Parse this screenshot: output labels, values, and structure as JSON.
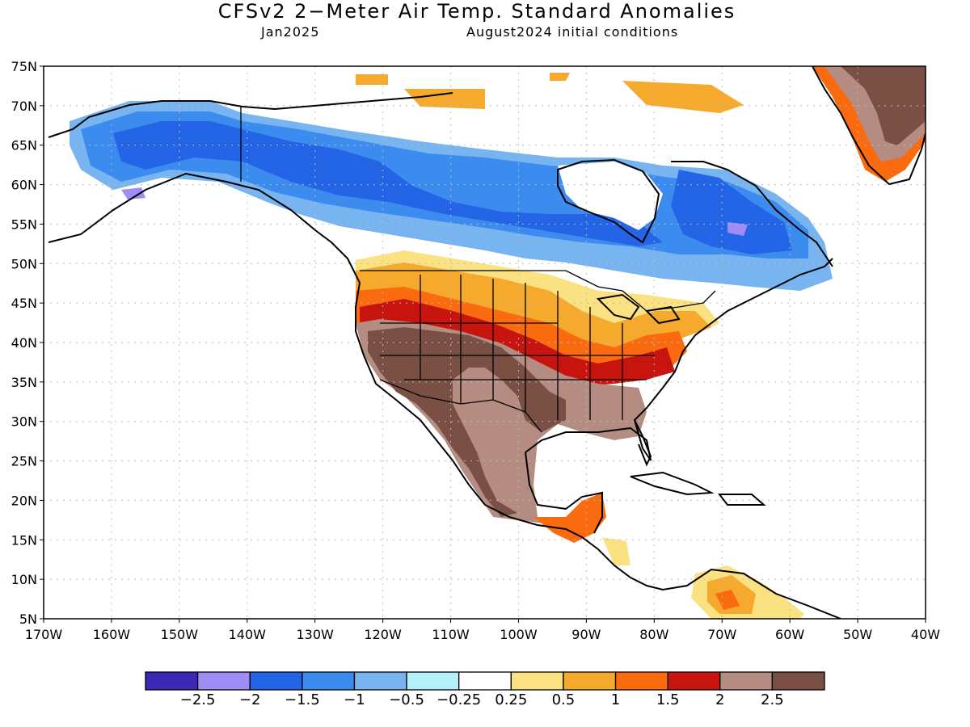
{
  "title": "CFSv2 2−Meter Air Temp. Standard Anomalies",
  "subtitle_left": "Jan2025",
  "subtitle_right": "August2024 initial conditions",
  "lat_labels": [
    "75N",
    "70N",
    "65N",
    "60N",
    "55N",
    "50N",
    "45N",
    "40N",
    "35N",
    "30N",
    "25N",
    "20N",
    "15N",
    "10N",
    "5N"
  ],
  "lon_labels": [
    "170W",
    "160W",
    "150W",
    "140W",
    "130W",
    "120W",
    "110W",
    "100W",
    "90W",
    "80W",
    "70W",
    "60W",
    "50W",
    "40W"
  ],
  "colorbar": {
    "colors": [
      "#3b28b4",
      "#a08cf5",
      "#2464e6",
      "#3c8cf0",
      "#78b4f0",
      "#b4f0fa",
      "#ffffff",
      "#fae182",
      "#f5aa2d",
      "#fa6a0f",
      "#c8140f",
      "#b48c82",
      "#7a5044"
    ],
    "labels": [
      "−2.5",
      "−2",
      "−1.5",
      "−1",
      "−0.5",
      "−0.25",
      "0.25",
      "0.5",
      "1",
      "1.5",
      "2",
      "2.5"
    ]
  }
}
